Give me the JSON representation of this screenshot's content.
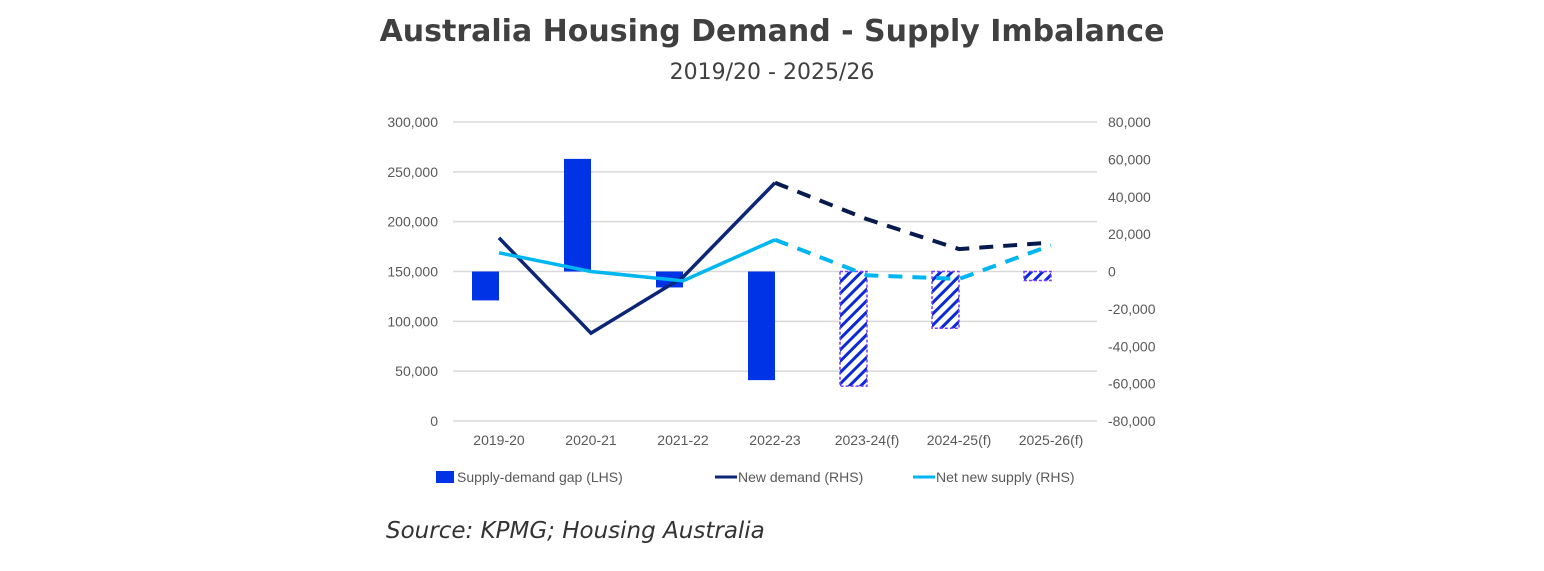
{
  "chart_data": {
    "type": "bar+line",
    "title": "Australia Housing Demand - Supply Imbalance",
    "subtitle": "2019/20 - 2025/26",
    "source": "Source: KPMG; Housing Australia",
    "categories": [
      "2019-20",
      "2020-21",
      "2021-22",
      "2022-23",
      "2023-24(f)",
      "2024-25(f)",
      "2025-26(f)"
    ],
    "forecast_from_index": 4,
    "y_left": {
      "ylim": [
        0,
        300000
      ],
      "ticks": [
        "0",
        "50,000",
        "100,000",
        "150,000",
        "200,000",
        "250,000",
        "300,000"
      ],
      "bar_baseline": 150000
    },
    "y_right": {
      "ylim": [
        -80000,
        80000
      ],
      "ticks": [
        "-80,000",
        "-60,000",
        "-40,000",
        "-20,000",
        "0",
        "20,000",
        "40,000",
        "60,000",
        "80,000"
      ]
    },
    "grid": true,
    "legend_position": "bottom",
    "series": [
      {
        "name": "Supply-demand gap (LHS)",
        "type": "bar",
        "axis": "left",
        "color": "#0033e6",
        "values": [
          121000,
          263000,
          134000,
          41000,
          35000,
          93000,
          141000
        ]
      },
      {
        "name": "New demand (RHS)",
        "type": "line",
        "axis": "right",
        "color": "#0c2577",
        "values": [
          18000,
          -33000,
          -3000,
          47500,
          28000,
          12000,
          15500
        ]
      },
      {
        "name": "Net new supply (RHS)",
        "type": "line",
        "axis": "right",
        "color": "#00b6f0",
        "values": [
          10000,
          0,
          -5000,
          17000,
          -2000,
          -4000,
          14000
        ]
      }
    ]
  }
}
